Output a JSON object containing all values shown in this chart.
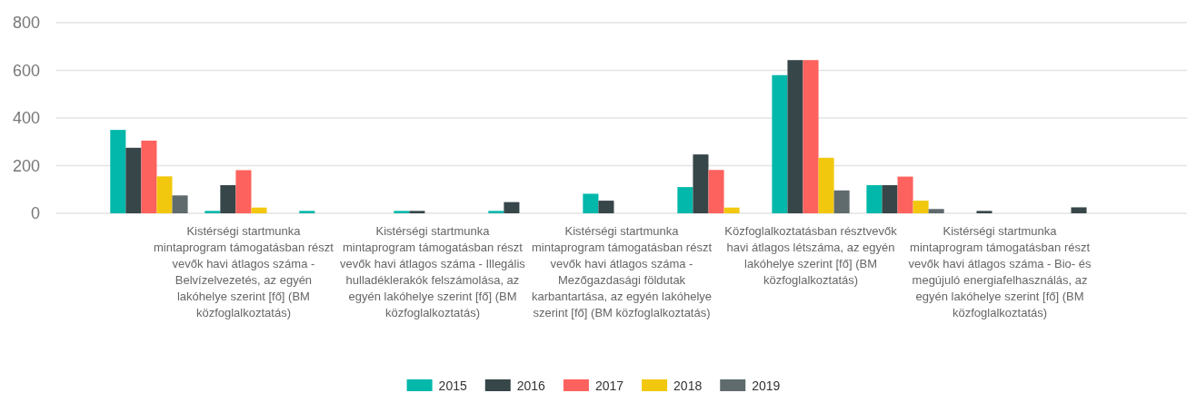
{
  "chart_data": {
    "type": "bar",
    "categories": [
      null,
      "Kistérségi startmunka mintaprogram támogatásban részt vevők havi átlagos száma - Belvízelvezetés, az egyén lakóhelye szerint [fő] (BM közfoglalkoztatás)",
      null,
      "Kistérségi startmunka mintaprogram támogatásban részt vevők havi átlagos száma - Illegális hulladéklerakók felszámolása, az egyén lakóhelye szerint [fő] (BM közfoglalkoztatás)",
      null,
      "Kistérségi startmunka mintaprogram támogatásban részt vevők havi átlagos száma - Mezőgazdasági földutak karbantartása, az egyén lakóhelye szerint [fő] (BM közfoglalkoztatás)",
      null,
      "Közfoglalkoztatásban résztvevők havi átlagos létszáma, az egyén lakóhelye szerint [fő] (BM közfoglalkoztatás)",
      null,
      "Kistérségi startmunka mintaprogram támogatásban részt vevők havi átlagos száma - Bio- és megújuló energiafelhasználás, az egyén lakóhelye szerint [fő] (BM közfoglalkoztatás)",
      null
    ],
    "series": [
      {
        "name": "2015",
        "color": "#01b8aa",
        "values": [
          350,
          10,
          10,
          10,
          10,
          82,
          110,
          580,
          118,
          null,
          null
        ]
      },
      {
        "name": "2016",
        "color": "#374649",
        "values": [
          275,
          118,
          null,
          10,
          47,
          53,
          247,
          643,
          118,
          10,
          25
        ]
      },
      {
        "name": "2017",
        "color": "#fd625e",
        "values": [
          305,
          181,
          null,
          null,
          null,
          null,
          182,
          643,
          154,
          null,
          null
        ]
      },
      {
        "name": "2018",
        "color": "#f2c80f",
        "values": [
          155,
          24,
          null,
          null,
          null,
          null,
          24,
          233,
          53,
          null,
          null
        ]
      },
      {
        "name": "2019",
        "color": "#5f6b6d",
        "values": [
          75,
          null,
          null,
          null,
          null,
          null,
          null,
          96,
          18,
          null,
          null
        ]
      }
    ],
    "ylim": [
      0,
      800
    ],
    "yticks": [
      0,
      200,
      400,
      600,
      800
    ],
    "grid": "y",
    "legend": "bottom"
  }
}
